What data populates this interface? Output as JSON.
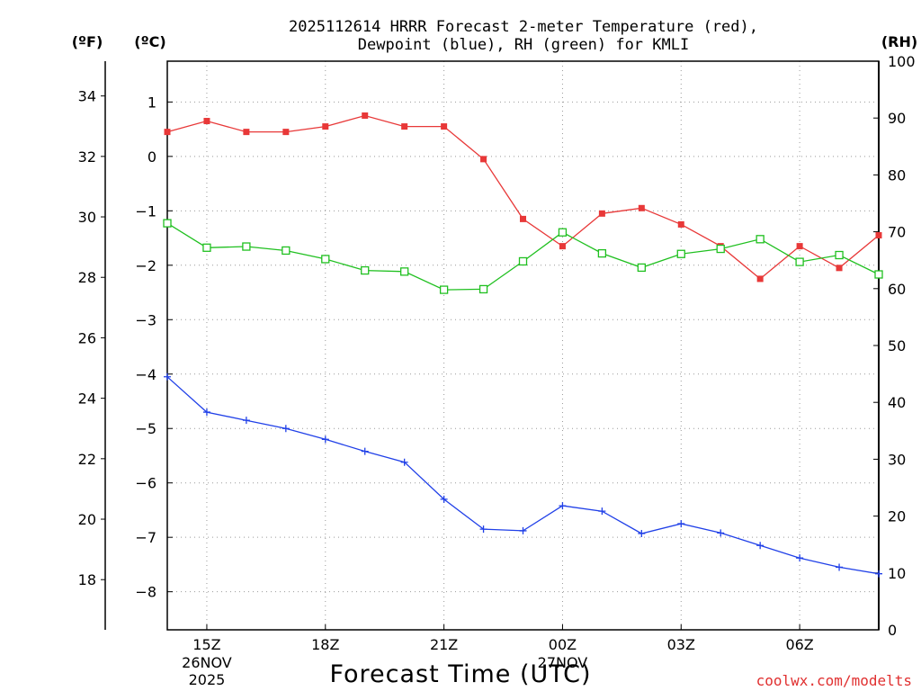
{
  "chart_data": {
    "type": "line",
    "title_lines": [
      "2025112614 HRRR Forecast 2-meter Temperature (red),",
      "Dewpoint (blue), RH (green) for KMLI"
    ],
    "xlabel": "Forecast Time (UTC)",
    "credit": "coolwx.com/modelts",
    "units": {
      "fahrenheit": "(ºF)",
      "celsius": "(ºC)",
      "rh": "(RH)"
    },
    "x_hours": [
      14,
      15,
      16,
      17,
      18,
      19,
      20,
      21,
      22,
      23,
      24,
      25,
      26,
      27,
      28,
      29,
      30,
      31,
      32
    ],
    "x_range": [
      14,
      32
    ],
    "x_ticks": [
      {
        "hour": 15,
        "label": "15Z",
        "sub": [
          "26NOV",
          "2025"
        ]
      },
      {
        "hour": 18,
        "label": "18Z",
        "sub": []
      },
      {
        "hour": 21,
        "label": "21Z",
        "sub": []
      },
      {
        "hour": 24,
        "label": "00Z",
        "sub": [
          "27NOV"
        ]
      },
      {
        "hour": 27,
        "label": "03Z",
        "sub": []
      },
      {
        "hour": 30,
        "label": "06Z",
        "sub": []
      }
    ],
    "celsius_range": [
      -8.7,
      1.75
    ],
    "celsius_ticks": [
      1,
      0,
      -1,
      -2,
      -3,
      -4,
      -5,
      -6,
      -7,
      -8
    ],
    "fahrenheit_ticks": [
      34,
      32,
      30,
      28,
      26,
      24,
      22,
      20,
      18
    ],
    "rh_range": [
      0,
      100
    ],
    "rh_ticks": [
      100,
      90,
      80,
      70,
      60,
      50,
      40,
      30,
      20,
      10,
      0
    ],
    "series": [
      {
        "name": "2-meter Temperature",
        "axis": "celsius",
        "color": "#e83838",
        "marker": "filled-square",
        "values": [
          0.45,
          0.65,
          0.45,
          0.45,
          0.55,
          0.75,
          0.55,
          0.55,
          -0.05,
          -1.15,
          -1.65,
          -1.05,
          -0.95,
          -1.25,
          -1.65,
          -2.25,
          -1.65,
          -2.05,
          -1.45
        ]
      },
      {
        "name": "Dewpoint",
        "axis": "celsius",
        "color": "#2040e8",
        "marker": "plus",
        "values": [
          -4.05,
          -4.7,
          -4.85,
          -5.0,
          -5.2,
          -5.42,
          -5.62,
          -6.3,
          -6.85,
          -6.88,
          -6.42,
          -6.52,
          -6.93,
          -6.75,
          -6.92,
          -7.15,
          -7.38,
          -7.55,
          -7.67
        ]
      },
      {
        "name": "RH",
        "axis": "rh",
        "color": "#20c020",
        "marker": "open-square",
        "values": [
          71.5,
          67.2,
          67.4,
          66.7,
          65.2,
          63.2,
          63.0,
          59.8,
          59.9,
          64.8,
          69.9,
          66.2,
          63.7,
          66.1,
          67.0,
          68.7,
          64.7,
          65.9,
          62.5
        ]
      }
    ]
  }
}
